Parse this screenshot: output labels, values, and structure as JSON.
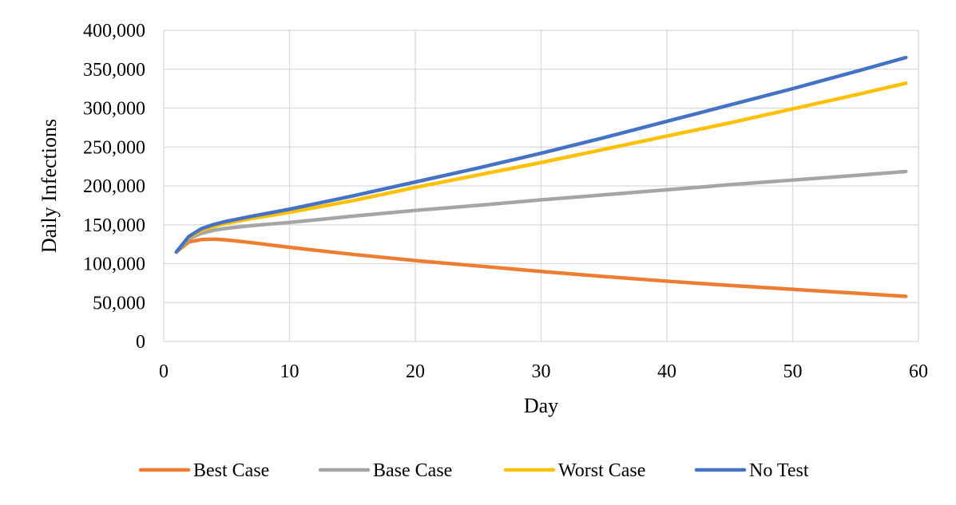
{
  "chart_data": {
    "type": "line",
    "title": "",
    "xlabel": "Day",
    "ylabel": "Daily Infections",
    "xlim": [
      0,
      60
    ],
    "ylim": [
      0,
      400000
    ],
    "x_ticks": [
      0,
      10,
      20,
      30,
      40,
      50,
      60
    ],
    "y_ticks": [
      0,
      50000,
      100000,
      150000,
      200000,
      250000,
      300000,
      350000,
      400000
    ],
    "x_tick_labels": [
      "0",
      "10",
      "20",
      "30",
      "40",
      "50",
      "60"
    ],
    "y_tick_labels": [
      "0",
      "50,000",
      "100,000",
      "150,000",
      "200,000",
      "250,000",
      "300,000",
      "350,000",
      "400,000"
    ],
    "grid": true,
    "legend_position": "bottom",
    "series": [
      {
        "name": "Best Case",
        "color": "#ED7D31",
        "x": [
          1,
          2,
          3,
          4,
          5,
          7,
          10,
          15,
          20,
          25,
          30,
          35,
          40,
          45,
          50,
          55,
          59
        ],
        "y": [
          115000,
          128000,
          131000,
          131500,
          130500,
          127000,
          121000,
          112000,
          104000,
          97000,
          90000,
          83500,
          77500,
          72000,
          67000,
          62000,
          58000
        ]
      },
      {
        "name": "Base Case",
        "color": "#A5A5A5",
        "x": [
          1,
          2,
          3,
          4,
          5,
          7,
          10,
          15,
          20,
          25,
          30,
          35,
          40,
          45,
          50,
          55,
          59
        ],
        "y": [
          115000,
          132000,
          139000,
          143000,
          145500,
          149000,
          153000,
          161000,
          168500,
          175000,
          182000,
          188500,
          195000,
          201500,
          207500,
          213500,
          218500
        ]
      },
      {
        "name": "Worst Case",
        "color": "#FFC000",
        "x": [
          1,
          2,
          3,
          4,
          5,
          7,
          10,
          15,
          20,
          25,
          30,
          35,
          40,
          45,
          50,
          55,
          59
        ],
        "y": [
          115000,
          134000,
          143000,
          148000,
          152000,
          158000,
          166000,
          181000,
          198000,
          214000,
          230000,
          247000,
          264000,
          281000,
          299000,
          317000,
          332000
        ]
      },
      {
        "name": "No Test",
        "color": "#4472C4",
        "x": [
          1,
          2,
          3,
          4,
          5,
          7,
          10,
          15,
          20,
          25,
          30,
          35,
          40,
          45,
          50,
          55,
          59
        ],
        "y": [
          115000,
          135000,
          145000,
          150500,
          154500,
          161000,
          170000,
          187000,
          205000,
          223000,
          242000,
          262000,
          283000,
          304000,
          325000,
          347000,
          365000
        ]
      }
    ]
  }
}
